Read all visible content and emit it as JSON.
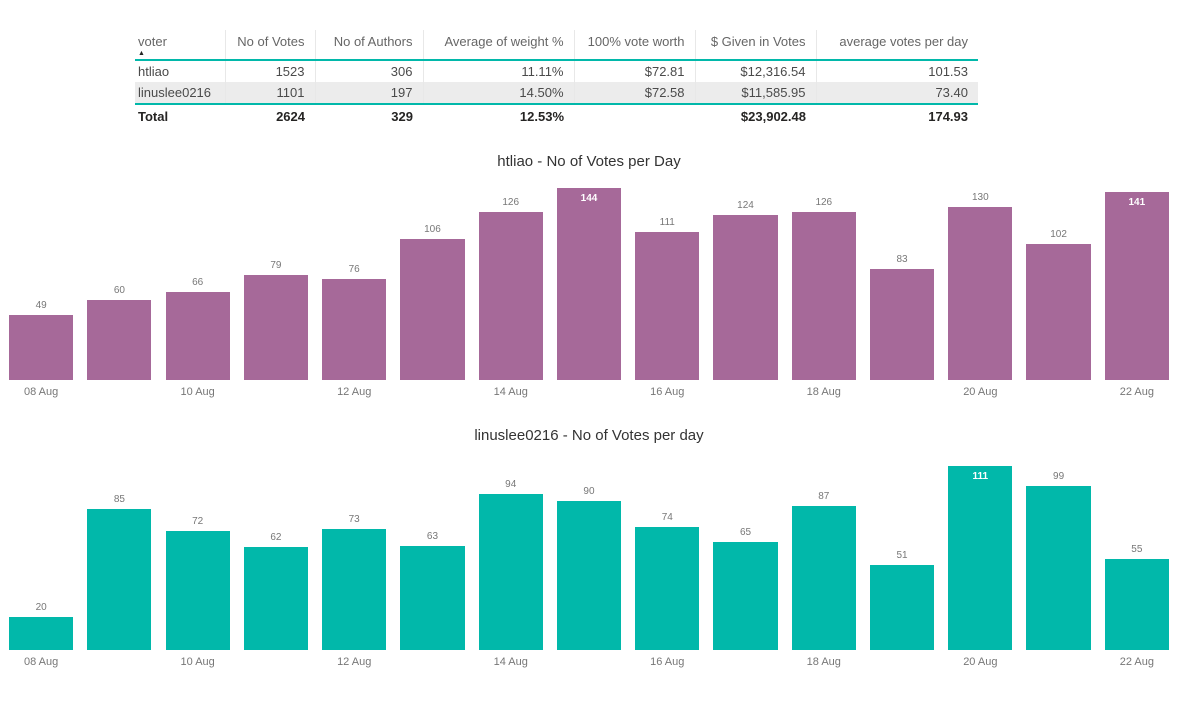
{
  "colors": {
    "accent_teal": "#01b8aa",
    "bar_purple": "#a66999",
    "bar_teal": "#01b8aa",
    "alt_row_bg": "#ececec",
    "table_text": "#4a4a4a",
    "total_text": "#252423",
    "label_gray": "#777777"
  },
  "table": {
    "columns": [
      {
        "label": "voter",
        "align": "left",
        "sorted": "asc"
      },
      {
        "label": "No of Votes",
        "align": "right"
      },
      {
        "label": "No of Authors",
        "align": "right"
      },
      {
        "label": "Average of weight %",
        "align": "right"
      },
      {
        "label": "100% vote worth",
        "align": "right"
      },
      {
        "label": "$ Given in Votes",
        "align": "right"
      },
      {
        "label": "average votes per day",
        "align": "right"
      }
    ],
    "sort_arrow": "▲",
    "rows": [
      {
        "cells": [
          "htliao",
          "1523",
          "306",
          "11.11%",
          "$72.81",
          "$12,316.54",
          "101.53"
        ],
        "shaded": false
      },
      {
        "cells": [
          "linuslee0216",
          "1101",
          "197",
          "14.50%",
          "$72.58",
          "$11,585.95",
          "73.40"
        ],
        "shaded": true
      }
    ],
    "total": [
      "Total",
      "2624",
      "329",
      "12.53%",
      "",
      "$23,902.48",
      "174.93"
    ]
  },
  "chart_data": [
    {
      "type": "bar",
      "title": "htliao - No of Votes per Day",
      "categories": [
        "08 Aug",
        "09 Aug",
        "10 Aug",
        "11 Aug",
        "12 Aug",
        "13 Aug",
        "14 Aug",
        "15 Aug",
        "16 Aug",
        "17 Aug",
        "18 Aug",
        "19 Aug",
        "20 Aug",
        "21 Aug",
        "22 Aug"
      ],
      "values": [
        49,
        60,
        66,
        79,
        76,
        106,
        126,
        144,
        111,
        124,
        126,
        83,
        130,
        102,
        141
      ],
      "visible_tick_labels": [
        "08 Aug",
        "10 Aug",
        "12 Aug",
        "14 Aug",
        "16 Aug",
        "18 Aug",
        "20 Aug",
        "22 Aug"
      ],
      "bar_color": "#a66999",
      "data_labels": true,
      "inside_label_indices": [
        7,
        14
      ],
      "ylim": [
        0,
        144
      ],
      "xlabel": "",
      "ylabel": "",
      "grid": false,
      "legend": false
    },
    {
      "type": "bar",
      "title": "linuslee0216 - No of Votes per day",
      "categories": [
        "08 Aug",
        "09 Aug",
        "10 Aug",
        "11 Aug",
        "12 Aug",
        "13 Aug",
        "14 Aug",
        "15 Aug",
        "16 Aug",
        "17 Aug",
        "18 Aug",
        "19 Aug",
        "20 Aug",
        "21 Aug",
        "22 Aug"
      ],
      "values": [
        20,
        85,
        72,
        62,
        73,
        63,
        94,
        90,
        74,
        65,
        87,
        51,
        111,
        99,
        55
      ],
      "visible_tick_labels": [
        "08 Aug",
        "10 Aug",
        "12 Aug",
        "14 Aug",
        "16 Aug",
        "18 Aug",
        "20 Aug",
        "22 Aug"
      ],
      "bar_color": "#01b8aa",
      "data_labels": true,
      "inside_label_indices": [
        12
      ],
      "ylim": [
        0,
        111
      ],
      "xlabel": "",
      "ylabel": "",
      "grid": false,
      "legend": false
    }
  ]
}
